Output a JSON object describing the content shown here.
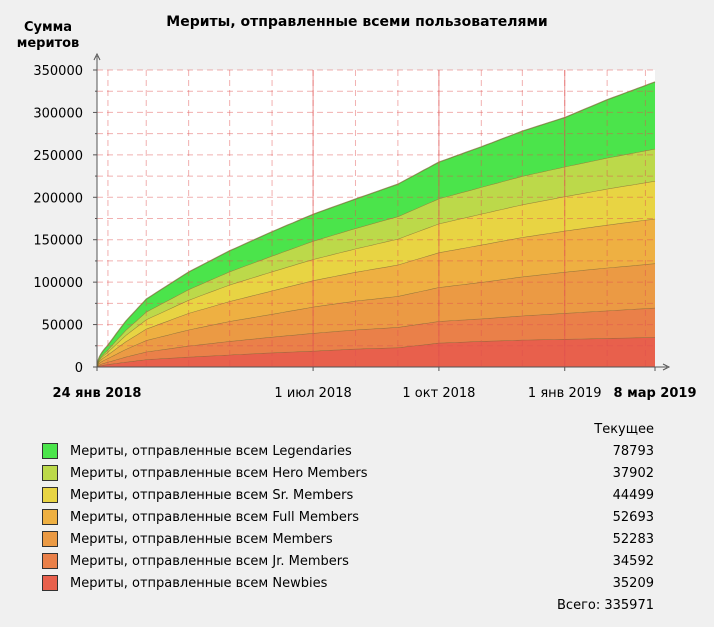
{
  "chart_data": {
    "type": "area",
    "stacked": true,
    "title": "Мериты, отправленные всеми пользователями",
    "ylabel": [
      "Сумма",
      "меритов"
    ],
    "ylim": [
      0,
      350000
    ],
    "yticks": [
      0,
      50000,
      100000,
      150000,
      200000,
      250000,
      300000,
      350000
    ],
    "xstart": "2018-01-24",
    "xend": "2019-03-08",
    "xticks": [
      {
        "date": "2018-01-24",
        "label": "24 янв 2018",
        "bold": true
      },
      {
        "date": "2018-07-01",
        "label": "1 июл 2018",
        "bold": false
      },
      {
        "date": "2018-10-01",
        "label": "1 окт 2018",
        "bold": false
      },
      {
        "date": "2019-01-01",
        "label": "1 янв 2019",
        "bold": false
      },
      {
        "date": "2019-03-08",
        "label": "8 мар 2019",
        "bold": true
      }
    ],
    "grid": true,
    "x": [
      "2018-01-24",
      "2018-01-31",
      "2018-02-14",
      "2018-03-01",
      "2018-04-01",
      "2018-05-01",
      "2018-06-01",
      "2018-07-01",
      "2018-08-01",
      "2018-09-01",
      "2018-10-01",
      "2018-11-01",
      "2018-12-01",
      "2019-01-01",
      "2019-02-01",
      "2019-03-08"
    ],
    "series": [
      {
        "name": "Мериты, отправленные всем Newbies",
        "color": "#e8604c",
        "values": [
          0,
          3000,
          6000,
          9000,
          12000,
          14500,
          17000,
          19000,
          21500,
          23000,
          28500,
          30500,
          32000,
          33000,
          34000,
          35209
        ]
      },
      {
        "name": "Мериты, отправленные всем Jr. Members",
        "color": "#ea8049",
        "values": [
          0,
          2500,
          6000,
          9000,
          13000,
          16000,
          18500,
          21000,
          22500,
          24000,
          25500,
          26500,
          28500,
          30500,
          32500,
          34592
        ]
      },
      {
        "name": "Мериты, отправленные всем Members",
        "color": "#eb9a44",
        "values": [
          0,
          4000,
          9000,
          13500,
          19000,
          23500,
          27000,
          31000,
          34000,
          36500,
          40000,
          43000,
          46000,
          48500,
          50500,
          52283
        ]
      },
      {
        "name": "Мериты, отправленные всем Full Members",
        "color": "#eeb042",
        "values": [
          0,
          4000,
          9000,
          13500,
          19500,
          23500,
          27500,
          31000,
          34000,
          37000,
          41000,
          44000,
          46500,
          48500,
          50500,
          52693
        ]
      },
      {
        "name": "Мериты, отправленные всем Sr. Members",
        "color": "#e8d443",
        "values": [
          0,
          3000,
          7500,
          11000,
          15500,
          19500,
          22500,
          25000,
          27500,
          30500,
          34000,
          36500,
          38500,
          40500,
          42500,
          44499
        ]
      },
      {
        "name": "Мериты, отправленные всем Hero Members",
        "color": "#bcd94a",
        "values": [
          0,
          2500,
          6000,
          9000,
          12500,
          15500,
          18500,
          21500,
          24000,
          26500,
          29500,
          31500,
          33500,
          35000,
          36500,
          37902
        ]
      },
      {
        "name": "Мериты, отправленные всем Legendaries",
        "color": "#4be44b",
        "values": [
          0,
          5000,
          10500,
          15000,
          20500,
          24500,
          28500,
          31500,
          34500,
          38000,
          43000,
          47500,
          53000,
          58000,
          68500,
          78793
        ]
      }
    ]
  },
  "legend": {
    "header": "Текущее",
    "items": [
      {
        "label": "Мериты, отправленные всем Legendaries",
        "value": "78793",
        "color": "#4be44b"
      },
      {
        "label": "Мериты, отправленные всем Hero Members",
        "value": "37902",
        "color": "#bcd94a"
      },
      {
        "label": "Мериты, отправленные всем Sr. Members",
        "value": "44499",
        "color": "#e8d443"
      },
      {
        "label": "Мериты, отправленные всем Full Members",
        "value": "52693",
        "color": "#eeb042"
      },
      {
        "label": "Мериты, отправленные всем Members",
        "value": "52283",
        "color": "#eb9a44"
      },
      {
        "label": "Мериты, отправленные всем Jr. Members",
        "value": "34592",
        "color": "#ea8049"
      },
      {
        "label": "Мериты, отправленные всем Newbies",
        "value": "35209",
        "color": "#e8604c"
      }
    ],
    "total": "Всего: 335971"
  }
}
